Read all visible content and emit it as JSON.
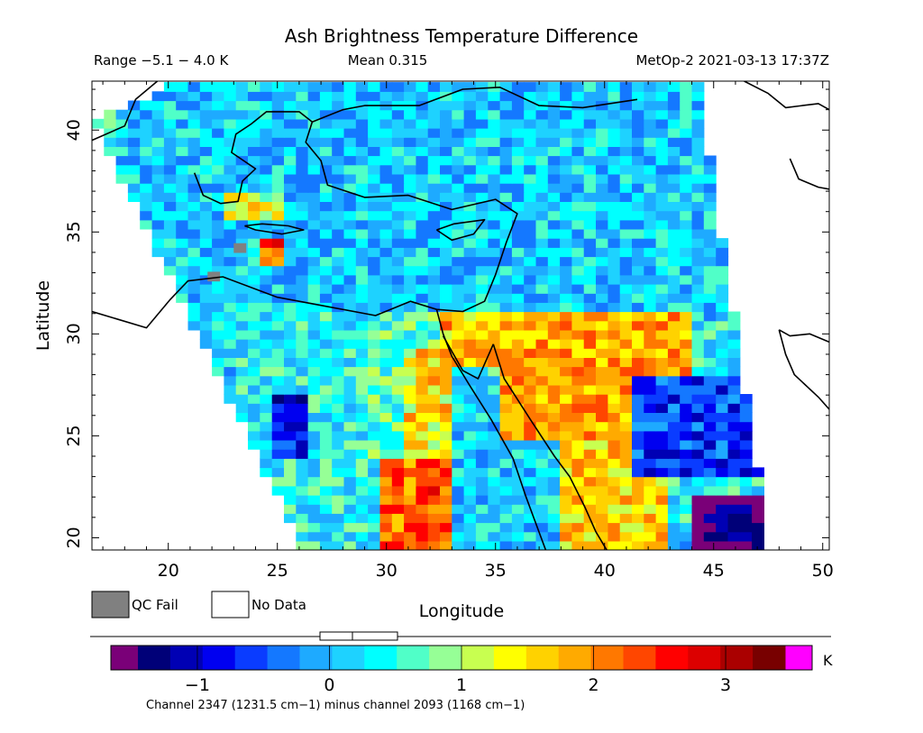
{
  "chart_data": {
    "type": "heatmap",
    "title": "Ash Brightness Temperature Difference",
    "range_label": "Range −5.1 − 4.0 K",
    "mean_label": "Mean 0.315",
    "satellite_label": "MetOp-2 2021-03-13 17:37Z",
    "xlabel": "Longitude",
    "ylabel": "Latitude",
    "xlim": [
      16.5,
      50.3
    ],
    "ylim": [
      19.4,
      42.4
    ],
    "x_ticks": [
      20,
      25,
      30,
      35,
      40,
      45,
      50
    ],
    "y_ticks": [
      20,
      25,
      30,
      35,
      40
    ],
    "grid": false,
    "swath_corners_lon_lat": [
      [
        16.5,
        40.5
      ],
      [
        20.6,
        42.4
      ],
      [
        44.3,
        42.4
      ],
      [
        47.6,
        19.4
      ],
      [
        26.2,
        19.4
      ]
    ],
    "range_k": [
      -5.1,
      4.0
    ],
    "mean_k": 0.315,
    "colorbar": {
      "min": -1.45,
      "max": 3.45,
      "unit": "K",
      "ticks": [
        -1,
        0,
        1,
        2,
        3
      ],
      "underflow_color": "#7a0078",
      "overflow_color": "#ff00ff",
      "colors": [
        "#000078",
        "#0000b4",
        "#0000f0",
        "#0a3cff",
        "#1478ff",
        "#1eaaff",
        "#1ed2ff",
        "#00ffff",
        "#50ffc8",
        "#96ff96",
        "#c8ff50",
        "#ffff00",
        "#ffd200",
        "#ffaa00",
        "#ff7800",
        "#ff4600",
        "#ff0000",
        "#dc0000",
        "#aa0000",
        "#780000"
      ],
      "caption": "Channel 2347 (1231.5 cm−1) minus channel 2093 (1168 cm−1)"
    },
    "legend_items": [
      {
        "label": "QC Fail",
        "color": "#808080"
      },
      {
        "label": "No Data",
        "color": "#ffffff"
      }
    ],
    "regions": [
      {
        "name": "sea_background",
        "value": 0.1,
        "lon": [
          18,
          46
        ],
        "lat": [
          31,
          42.4
        ]
      },
      {
        "name": "libya_desert",
        "value": 0.35,
        "lon": [
          23,
          29
        ],
        "lat": [
          19.4,
          31
        ]
      },
      {
        "name": "western_desert",
        "value": 0.65,
        "lon": [
          29,
          32.5
        ],
        "lat": [
          24,
          31
        ]
      },
      {
        "name": "nile_valley",
        "value": 1.5,
        "lon": [
          31,
          33
        ],
        "lat": [
          23,
          29.5
        ]
      },
      {
        "name": "sudan_desert",
        "value": 2.2,
        "lon": [
          29.5,
          36
        ],
        "lat": [
          19.4,
          24
        ]
      },
      {
        "name": "red_sea",
        "value": 0.2,
        "lon": [
          33,
          38
        ],
        "lat": [
          19.4,
          28
        ]
      },
      {
        "name": "arabia_north",
        "value": 1.9,
        "lon": [
          35,
          44
        ],
        "lat": [
          25,
          31
        ]
      },
      {
        "name": "arabia_south",
        "value": 1.6,
        "lon": [
          38,
          43
        ],
        "lat": [
          19.4,
          25
        ]
      },
      {
        "name": "crete_hotspot",
        "value": 2.4,
        "lon": [
          24,
          25.5
        ],
        "lat": [
          33.4,
          34.6
        ]
      },
      {
        "name": "aegean_south",
        "value": 1.3,
        "lon": [
          22.5,
          25.5
        ],
        "lat": [
          35.5,
          37
        ]
      },
      {
        "name": "negative_east",
        "value": -0.6,
        "lon": [
          41,
          47.6
        ],
        "lat": [
          23,
          28
        ]
      },
      {
        "name": "ultra_negative_se",
        "value": -1.6,
        "lon": [
          44.2,
          47.6
        ],
        "lat": [
          19.4,
          22
        ]
      },
      {
        "name": "cold_west_libya",
        "value": -0.8,
        "lon": [
          24.5,
          26.5
        ],
        "lat": [
          24,
          27
        ]
      },
      {
        "name": "sinai",
        "value": 1.7,
        "lon": [
          32.5,
          35
        ],
        "lat": [
          28.5,
          31
        ]
      }
    ],
    "qc_fail_pixels_lon_lat": [
      [
        23,
        34
      ],
      [
        21.8,
        32.6
      ]
    ]
  }
}
